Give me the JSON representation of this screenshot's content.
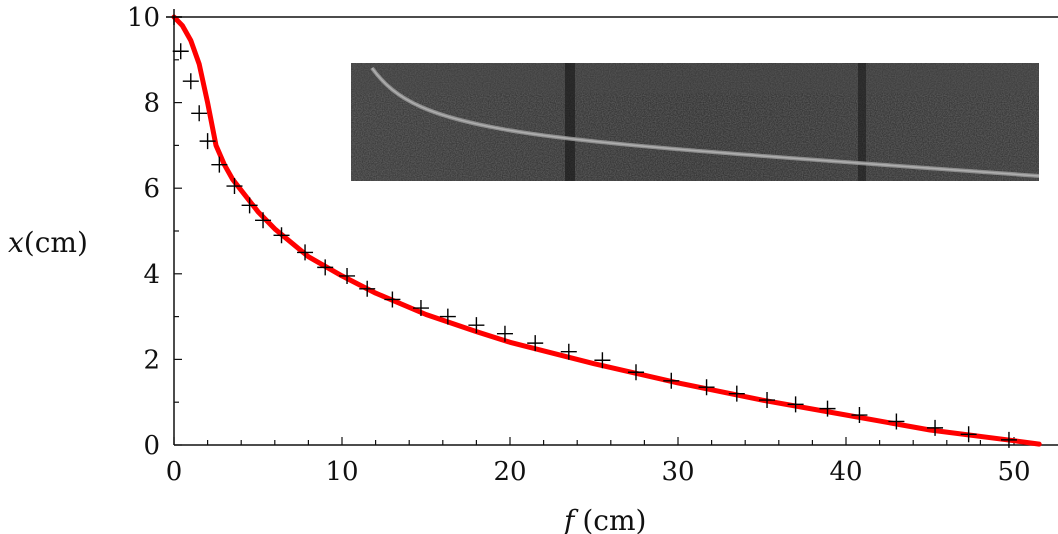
{
  "chart_data": {
    "type": "scatter",
    "xlabel": {
      "var": "f",
      "unit": "(cm)"
    },
    "ylabel": {
      "var": "x",
      "unit": "(cm)"
    },
    "xlim": [
      0,
      51.5
    ],
    "ylim": [
      0,
      10.1
    ],
    "x_ticks": [
      "0",
      "10",
      "20",
      "30",
      "40",
      "50"
    ],
    "y_ticks": [
      "0",
      "2",
      "4",
      "6",
      "8",
      "10"
    ],
    "grid": false,
    "inset": "grayscale photograph of the bent strip trajectory",
    "series": [
      {
        "style": "line",
        "color": "#ff0000",
        "x": [
          0,
          0.5,
          1.0,
          1.5,
          2.0,
          2.5,
          3.0,
          3.5,
          4.0,
          5.0,
          6.0,
          8.0,
          10.0,
          12.0,
          15.0,
          18.0,
          20.0,
          25.0,
          30.0,
          35.0,
          40.0,
          45.0,
          50.0,
          51.5
        ],
        "y": [
          10.0,
          9.8,
          9.45,
          8.9,
          8.0,
          7.0,
          6.55,
          6.2,
          5.95,
          5.45,
          5.05,
          4.4,
          3.95,
          3.55,
          3.05,
          2.65,
          2.4,
          1.9,
          1.45,
          1.05,
          0.7,
          0.35,
          0.1,
          0.02
        ]
      },
      {
        "style": "markers",
        "marker": "plus",
        "color": "#000000",
        "x": [
          0,
          0.4,
          1.0,
          1.5,
          2.0,
          2.7,
          3.6,
          4.5,
          5.3,
          6.4,
          7.8,
          9.0,
          10.3,
          11.5,
          13.0,
          14.7,
          16.3,
          18.0,
          19.7,
          21.5,
          23.5,
          25.5,
          27.5,
          29.6,
          31.7,
          33.5,
          35.3,
          37.0,
          38.9,
          40.8,
          43.0,
          45.3,
          47.3,
          49.7
        ],
        "y": [
          10.0,
          9.2,
          8.5,
          7.75,
          7.1,
          6.55,
          6.05,
          5.6,
          5.25,
          4.9,
          4.5,
          4.15,
          3.95,
          3.65,
          3.4,
          3.2,
          3.0,
          2.8,
          2.6,
          2.38,
          2.18,
          1.98,
          1.7,
          1.5,
          1.35,
          1.2,
          1.05,
          0.95,
          0.85,
          0.7,
          0.55,
          0.4,
          0.25,
          0.12
        ]
      }
    ]
  }
}
